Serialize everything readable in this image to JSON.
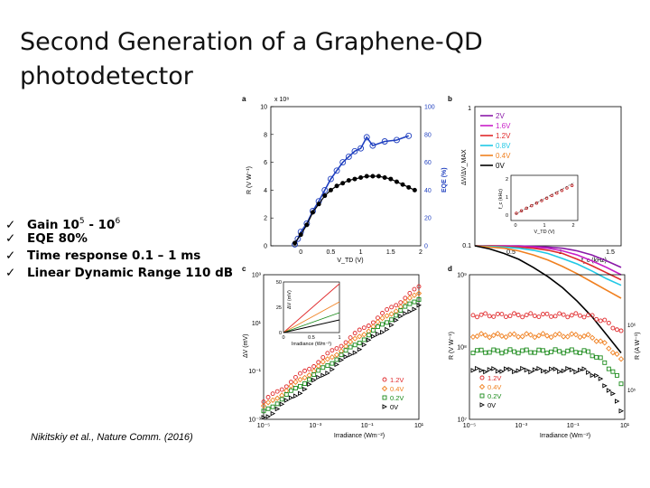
{
  "slide": {
    "title_line1": "Second Generation of a Graphene-QD",
    "title_line2": "photodetector",
    "bullets": [
      {
        "icon": "checkmark-icon",
        "text": "Gain 10",
        "sup1": "5",
        "mid": " - 10",
        "sup2": "6",
        "tail": ""
      },
      {
        "icon": "checkmark-icon",
        "text": "EQE 80%",
        "sup1": "",
        "mid": "",
        "sup2": "",
        "tail": ""
      },
      {
        "icon": "checkmark-icon",
        "text": "Time response 0.1 – 1 ms",
        "sup1": "",
        "mid": "",
        "sup2": "",
        "tail": ""
      },
      {
        "icon": "checkmark-icon",
        "text": "Linear Dynamic Range 110 dB",
        "sup1": "",
        "mid": "",
        "sup2": "",
        "tail": ""
      }
    ],
    "check_glyph": "ü",
    "citation": "Nikitskiy et al., Nature Comm. (2016)"
  },
  "chart_data": [
    {
      "panel": "a",
      "type": "scatter",
      "xlabel": "V_TD (V)",
      "ylabel_left": "R (V W⁻¹)",
      "ylabel_right": "EQE (%)",
      "axis_multiplier": "x 10⁸",
      "xlim": [
        -0.5,
        2
      ],
      "ylim_left": [
        0,
        10
      ],
      "ylim_right": [
        0,
        100
      ],
      "x_ticks": [
        "0",
        "0.5",
        "1",
        "1.5",
        "2"
      ],
      "y_ticks_left": [
        "0",
        "2",
        "4",
        "6",
        "8",
        "10"
      ],
      "y_ticks_right": [
        "0",
        "20",
        "40",
        "60",
        "80",
        "100"
      ],
      "series": [
        {
          "marker": "open-circle",
          "color": "#1f3fbf",
          "x": [
            -0.1,
            -0.05,
            0.0,
            0.1,
            0.2,
            0.3,
            0.4,
            0.5,
            0.6,
            0.7,
            0.8,
            0.9,
            1.0,
            1.1,
            1.2,
            1.4,
            1.6,
            1.8
          ],
          "y": [
            0.1,
            0.5,
            1.0,
            1.6,
            2.5,
            3.2,
            4.0,
            4.8,
            5.4,
            6.0,
            6.4,
            6.8,
            7.0,
            7.8,
            7.2,
            7.5,
            7.6,
            7.9
          ]
        },
        {
          "marker": "filled-circle",
          "color": "#000000",
          "x": [
            -0.1,
            0.0,
            0.1,
            0.2,
            0.3,
            0.4,
            0.5,
            0.6,
            0.7,
            0.8,
            0.9,
            1.0,
            1.1,
            1.2,
            1.3,
            1.4,
            1.5,
            1.6,
            1.7,
            1.8,
            1.9
          ],
          "y": [
            0.2,
            0.8,
            1.5,
            2.4,
            3.0,
            3.6,
            4.0,
            4.3,
            4.5,
            4.7,
            4.8,
            4.9,
            5.0,
            5.0,
            5.0,
            4.9,
            4.8,
            4.6,
            4.4,
            4.2,
            4.0
          ]
        }
      ]
    },
    {
      "panel": "b",
      "type": "line",
      "xlabel": "f_c (kHz)",
      "ylabel": "ΔV/ΔV_MAX",
      "x_ticks": [
        "0.5",
        "1",
        "1.5"
      ],
      "y_ticks": [
        "0.1",
        "1"
      ],
      "legend": "top-left",
      "series": [
        {
          "name": "2V",
          "color": "#8a1aa8",
          "y": [
            1.0,
            1.0,
            1.0,
            1.0,
            0.99,
            0.98,
            0.96,
            0.92,
            0.86,
            0.78,
            0.7
          ]
        },
        {
          "name": "1.6V",
          "color": "#c81ec8",
          "y": [
            1.0,
            1.0,
            1.0,
            0.99,
            0.98,
            0.96,
            0.92,
            0.86,
            0.78,
            0.7,
            0.62
          ]
        },
        {
          "name": "1.2V",
          "color": "#e0282a",
          "y": [
            1.0,
            1.0,
            0.99,
            0.98,
            0.96,
            0.93,
            0.88,
            0.8,
            0.72,
            0.64,
            0.57
          ]
        },
        {
          "name": "0.8V",
          "color": "#20c8e6",
          "y": [
            1.0,
            0.99,
            0.98,
            0.96,
            0.93,
            0.88,
            0.81,
            0.74,
            0.66,
            0.58,
            0.52
          ]
        },
        {
          "name": "0.4V",
          "color": "#f08020",
          "y": [
            1.0,
            0.98,
            0.96,
            0.92,
            0.86,
            0.79,
            0.71,
            0.63,
            0.55,
            0.48,
            0.42
          ]
        },
        {
          "name": "0V",
          "color": "#000000",
          "y": [
            1.0,
            0.95,
            0.88,
            0.8,
            0.7,
            0.6,
            0.5,
            0.4,
            0.31,
            0.23,
            0.17
          ]
        }
      ],
      "inset": {
        "xlabel": "V_TD (V)",
        "ylabel": "f_c (kHz)",
        "x_ticks": [
          "0",
          "1",
          "2"
        ],
        "y_ticks": [
          "0",
          "1",
          "2"
        ]
      }
    },
    {
      "panel": "c",
      "type": "scatter",
      "xlabel": "Irradiance (Wm⁻²)",
      "ylabel": "ΔV (mV)",
      "log_x": true,
      "log_y": true,
      "xlim": [
        1e-05,
        1
      ],
      "ylim": [
        0.001,
        1000
      ],
      "x_ticks": [
        "10⁻⁵",
        "10⁻³",
        "10⁻¹",
        "10¹"
      ],
      "y_ticks": [
        "10⁻³",
        "10⁻¹",
        "10¹",
        "10³"
      ],
      "legend": "bottom-right",
      "series": [
        {
          "name": "1.2V",
          "marker": "circle",
          "color": "#e0282a",
          "y_at_1": 300
        },
        {
          "name": "0.4V",
          "marker": "diamond",
          "color": "#f08020",
          "y_at_1": 180
        },
        {
          "name": "0.2V",
          "marker": "square",
          "color": "#1a8a1a",
          "y_at_1": 110
        },
        {
          "name": "0V",
          "marker": "triangle",
          "color": "#000000",
          "y_at_1": 60
        }
      ],
      "inset": {
        "xlabel": "Irradiance (Wm⁻²)",
        "ylabel": "ΔV (mV)",
        "x_ticks": [
          "0",
          "0.5",
          "1"
        ],
        "y_ticks": [
          "0",
          "25",
          "50"
        ]
      }
    },
    {
      "panel": "d",
      "type": "scatter",
      "xlabel": "Irradiance (Wm⁻²)",
      "ylabel_left": "R (V W⁻¹)",
      "ylabel_right": "R (A W⁻¹)",
      "log_x": true,
      "log_y": true,
      "x_ticks": [
        "10⁻⁵",
        "10⁻³",
        "10⁻¹",
        "10¹"
      ],
      "y_ticks_left": [
        "10⁷",
        "10⁸",
        "10⁹"
      ],
      "y_ticks_right": [
        "10⁵",
        "10⁶"
      ],
      "legend": "bottom-left",
      "series": [
        {
          "name": "1.2V",
          "marker": "circle",
          "color": "#e0282a",
          "level": 0.72
        },
        {
          "name": "0.4V",
          "marker": "diamond",
          "color": "#f08020",
          "level": 0.58
        },
        {
          "name": "0.2V",
          "marker": "square",
          "color": "#1a8a1a",
          "level": 0.47
        },
        {
          "name": "0V",
          "marker": "triangle",
          "color": "#000000",
          "level": 0.34
        }
      ]
    }
  ]
}
